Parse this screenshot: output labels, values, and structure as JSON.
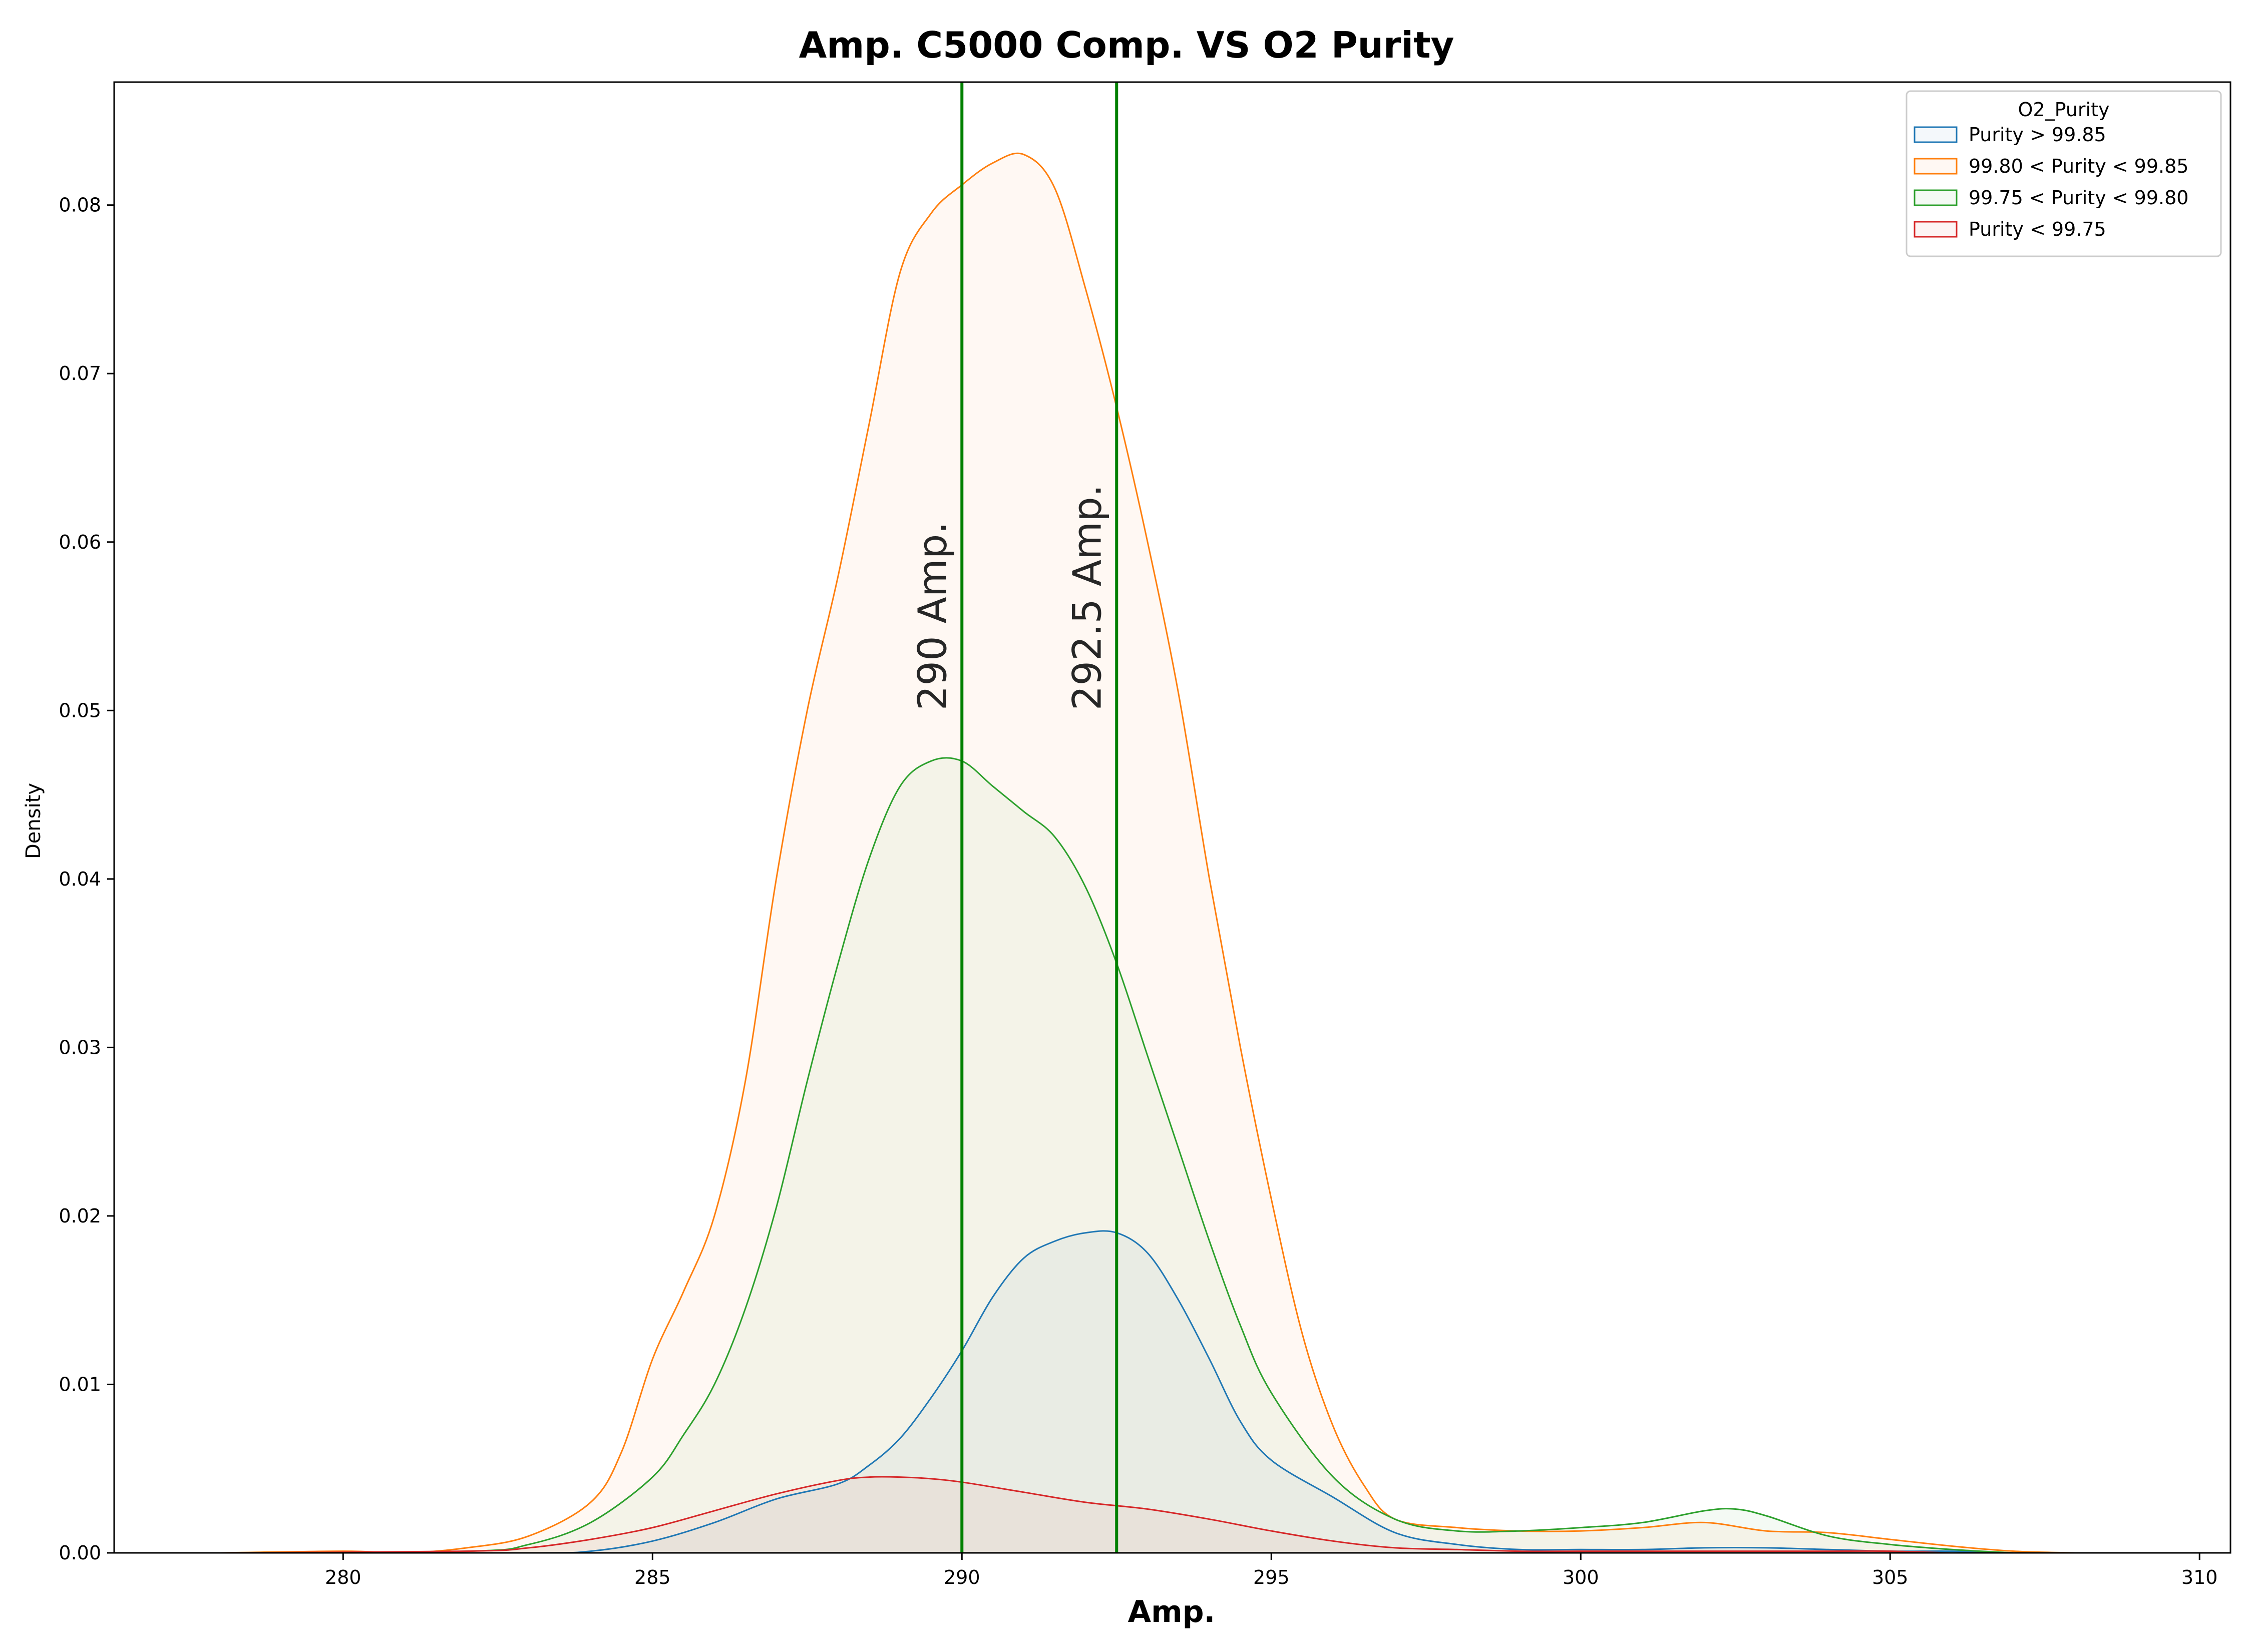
{
  "chart_data": {
    "type": "area",
    "title": "Amp. C5000 Comp. VS O2 Purity",
    "xlabel": "Amp.",
    "ylabel": "Density",
    "xlim": [
      276.3,
      310.5
    ],
    "ylim": [
      0,
      0.0873
    ],
    "x_ticks": [
      280,
      285,
      290,
      295,
      300,
      305,
      310
    ],
    "y_ticks": [
      0.0,
      0.01,
      0.02,
      0.03,
      0.04,
      0.05,
      0.06,
      0.07,
      0.08
    ],
    "y_tick_labels": [
      "0.00",
      "0.01",
      "0.02",
      "0.03",
      "0.04",
      "0.05",
      "0.06",
      "0.07",
      "0.08"
    ],
    "legend": {
      "title": "O2_Purity",
      "position": "top-right"
    },
    "vlines": [
      {
        "x": 290,
        "label": "290 Amp.",
        "color": "#008000"
      },
      {
        "x": 292.5,
        "label": "292.5 Amp.",
        "color": "#008000"
      }
    ],
    "series": [
      {
        "name": "Purity > 99.85",
        "color": "#1f77b4",
        "x": [
          278,
          283,
          284,
          285,
          286,
          287,
          288,
          288.5,
          289,
          289.5,
          290,
          290.5,
          291,
          291.5,
          292,
          292.5,
          293,
          293.5,
          294,
          294.5,
          295,
          296,
          297,
          298,
          299,
          300,
          301,
          302,
          303,
          304,
          305,
          306,
          307
        ],
        "y": [
          0,
          0,
          0.0001,
          0.0007,
          0.0018,
          0.0032,
          0.0041,
          0.0052,
          0.0068,
          0.0092,
          0.012,
          0.0152,
          0.0175,
          0.0185,
          0.019,
          0.019,
          0.0178,
          0.015,
          0.0115,
          0.0078,
          0.0055,
          0.0033,
          0.0012,
          0.0005,
          0.0002,
          0.0002,
          0.0002,
          0.0003,
          0.0003,
          0.0002,
          0.0001,
          0.0001,
          0
        ]
      },
      {
        "name": "99.80 < Purity < 99.85",
        "color": "#ff7f0e",
        "x": [
          278,
          280,
          281,
          282,
          283,
          284,
          284.5,
          285,
          285.5,
          286,
          286.5,
          287,
          287.5,
          288,
          288.5,
          289,
          289.5,
          290,
          290.5,
          291,
          291.5,
          292,
          292.5,
          293,
          293.5,
          294,
          294.5,
          295,
          295.5,
          296,
          296.5,
          297,
          298,
          299,
          300,
          301,
          302,
          303,
          304,
          305,
          306,
          307,
          308
        ],
        "y": [
          0,
          0.0001,
          0,
          0.0003,
          0.001,
          0.003,
          0.006,
          0.0115,
          0.0155,
          0.02,
          0.028,
          0.04,
          0.05,
          0.058,
          0.067,
          0.076,
          0.0795,
          0.0812,
          0.0825,
          0.083,
          0.081,
          0.075,
          0.068,
          0.06,
          0.051,
          0.04,
          0.03,
          0.021,
          0.013,
          0.0075,
          0.004,
          0.002,
          0.0015,
          0.0013,
          0.0013,
          0.0015,
          0.0018,
          0.0013,
          0.0012,
          0.0008,
          0.0004,
          0.0001,
          0
        ]
      },
      {
        "name": "99.75 < Purity < 99.80",
        "color": "#2ca02c",
        "x": [
          278,
          282,
          283,
          284,
          285,
          285.5,
          286,
          286.5,
          287,
          287.5,
          288,
          288.5,
          289,
          289.5,
          290,
          290.5,
          291,
          291.5,
          292,
          292.5,
          293,
          293.5,
          294,
          294.5,
          295,
          296,
          297,
          298,
          299,
          300,
          301,
          302,
          302.5,
          303,
          304,
          305,
          306,
          307
        ],
        "y": [
          0,
          0.0001,
          0.0005,
          0.0018,
          0.0045,
          0.007,
          0.01,
          0.0145,
          0.0205,
          0.028,
          0.035,
          0.0412,
          0.0455,
          0.047,
          0.047,
          0.0455,
          0.044,
          0.0425,
          0.0395,
          0.035,
          0.0295,
          0.024,
          0.0185,
          0.0135,
          0.0095,
          0.0045,
          0.002,
          0.0013,
          0.0013,
          0.0015,
          0.0018,
          0.0025,
          0.0026,
          0.0022,
          0.001,
          0.0005,
          0.0002,
          0
        ]
      },
      {
        "name": "Purity < 99.75",
        "color": "#d62728",
        "x": [
          278,
          282,
          283,
          284,
          285,
          286,
          287,
          288,
          288.5,
          289,
          289.5,
          290,
          291,
          292,
          293,
          294,
          295,
          296,
          297,
          298,
          299,
          300,
          301,
          302,
          303,
          304,
          305,
          306,
          307
        ],
        "y": [
          0,
          0.0001,
          0.0003,
          0.0008,
          0.0015,
          0.0025,
          0.0035,
          0.0043,
          0.0045,
          0.0045,
          0.0044,
          0.0042,
          0.0036,
          0.003,
          0.0026,
          0.002,
          0.0013,
          0.0007,
          0.0003,
          0.0002,
          0.0001,
          0.0001,
          0.0001,
          0.0001,
          0.0001,
          0.0001,
          0.0001,
          0,
          0
        ]
      }
    ]
  }
}
